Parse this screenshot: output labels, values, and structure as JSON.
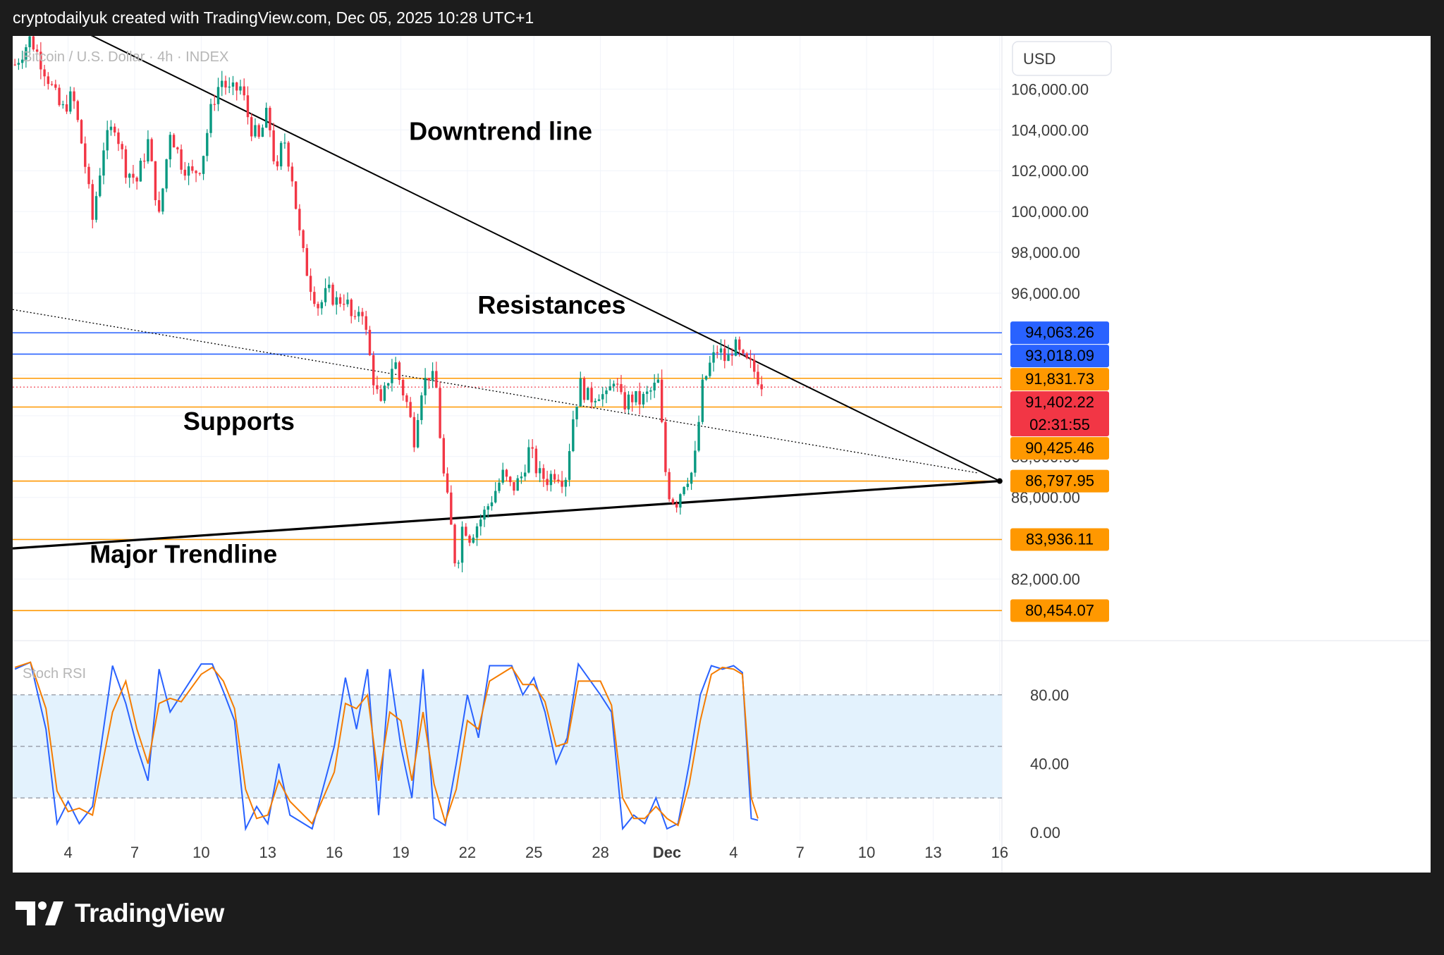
{
  "header": {
    "attribution": "cryptodailyuk created with TradingView.com, Dec 05, 2025 10:28 UTC+1"
  },
  "footer": {
    "brand": "TradingView",
    "logo_icon": "tradingview-logo-icon"
  },
  "chart_data": [
    {
      "type": "candlestick",
      "title": "Bitcoin / U.S. Dollar · 4h · INDEX",
      "currency_label": "USD",
      "x_axis": {
        "ticks": [
          "4",
          "7",
          "10",
          "13",
          "16",
          "19",
          "22",
          "25",
          "28",
          "Dec",
          "4",
          "7",
          "10",
          "13",
          "16"
        ],
        "tick_days": [
          4,
          7,
          10,
          13,
          16,
          19,
          22,
          25,
          28,
          31,
          34,
          37,
          40,
          43,
          46
        ],
        "range_days": [
          1.5,
          46.1
        ]
      },
      "y_axis": {
        "scale": "linear",
        "range": [
          79500,
          108600
        ],
        "ticks": [
          82000,
          84000,
          86000,
          88000,
          90000,
          92000,
          94000,
          96000,
          98000,
          100000,
          102000,
          104000,
          106000
        ],
        "tick_labels": [
          "82,000.00",
          "84,000.00",
          "86,000.00",
          "88,000.00",
          "90,000.00",
          "92,000.00",
          "94,000.00",
          "96,000.00",
          "98,000.00",
          "100,000.00",
          "102,000.00",
          "104,000.00",
          "106,000.00"
        ]
      },
      "close_path": [
        [
          1.6,
          107200
        ],
        [
          2.3,
          108500
        ],
        [
          3.0,
          106800
        ],
        [
          3.7,
          104900
        ],
        [
          4.2,
          105700
        ],
        [
          4.7,
          102800
        ],
        [
          5.1,
          99600
        ],
        [
          5.6,
          103200
        ],
        [
          6.1,
          104300
        ],
        [
          6.6,
          102100
        ],
        [
          7.1,
          101500
        ],
        [
          7.6,
          103400
        ],
        [
          8.1,
          99700
        ],
        [
          8.6,
          104000
        ],
        [
          9.1,
          102400
        ],
        [
          9.6,
          101800
        ],
        [
          10.0,
          102300
        ],
        [
          10.5,
          105300
        ],
        [
          10.9,
          106500
        ],
        [
          11.3,
          105800
        ],
        [
          11.8,
          106100
        ],
        [
          12.2,
          104200
        ],
        [
          12.6,
          103500
        ],
        [
          13.0,
          104900
        ],
        [
          13.4,
          101600
        ],
        [
          13.7,
          103800
        ],
        [
          14.1,
          101700
        ],
        [
          14.5,
          98300
        ],
        [
          14.9,
          96500
        ],
        [
          15.3,
          95300
        ],
        [
          15.7,
          96100
        ],
        [
          16.1,
          95600
        ],
        [
          16.5,
          95800
        ],
        [
          16.9,
          94300
        ],
        [
          17.2,
          95700
        ],
        [
          17.5,
          93500
        ],
        [
          17.8,
          91600
        ],
        [
          18.1,
          90400
        ],
        [
          18.4,
          91700
        ],
        [
          18.7,
          92800
        ],
        [
          19.0,
          91500
        ],
        [
          19.3,
          90500
        ],
        [
          19.6,
          88900
        ],
        [
          19.9,
          91300
        ],
        [
          20.3,
          92100
        ],
        [
          20.6,
          91300
        ],
        [
          20.9,
          87300
        ],
        [
          21.2,
          85100
        ],
        [
          21.5,
          82400
        ],
        [
          21.8,
          84800
        ],
        [
          22.1,
          84100
        ],
        [
          22.4,
          84600
        ],
        [
          22.8,
          85300
        ],
        [
          23.2,
          86200
        ],
        [
          23.6,
          87100
        ],
        [
          24.0,
          86400
        ],
        [
          24.4,
          86900
        ],
        [
          24.8,
          88400
        ],
        [
          25.2,
          87100
        ],
        [
          25.6,
          86900
        ],
        [
          26.0,
          87300
        ],
        [
          26.4,
          86800
        ],
        [
          26.8,
          90200
        ],
        [
          27.1,
          91500
        ],
        [
          27.5,
          90800
        ],
        [
          27.9,
          91200
        ],
        [
          28.3,
          90800
        ],
        [
          28.6,
          91900
        ],
        [
          29.0,
          90500
        ],
        [
          29.4,
          90900
        ],
        [
          29.8,
          90700
        ],
        [
          30.2,
          91100
        ],
        [
          30.6,
          91600
        ],
        [
          31.0,
          86400
        ],
        [
          31.4,
          85700
        ],
        [
          31.8,
          86900
        ],
        [
          32.2,
          87300
        ],
        [
          32.6,
          91400
        ],
        [
          32.9,
          92400
        ],
        [
          33.3,
          93300
        ],
        [
          33.7,
          92600
        ],
        [
          34.0,
          93500
        ],
        [
          34.4,
          92700
        ],
        [
          34.8,
          92400
        ],
        [
          35.1,
          91900
        ],
        [
          35.4,
          91400
        ]
      ],
      "last_price_tag": {
        "value": 91402.22,
        "countdown": "02:31:55"
      },
      "price_tags": [
        {
          "value": 94063.26,
          "label": "94,063.26",
          "bg": "#2962ff",
          "fg": "#ffffff"
        },
        {
          "value": 93018.09,
          "label": "93,018.09",
          "bg": "#2962ff",
          "fg": "#ffffff"
        },
        {
          "value": 91831.73,
          "label": "91,831.73",
          "bg": "#ff9800",
          "fg": "#000000"
        },
        {
          "value": 91402.22,
          "label": "91,402.22",
          "bg": "#f23645",
          "fg": "#ffffff"
        },
        {
          "value": 90425.46,
          "label": "90,425.46",
          "bg": "#ff9800",
          "fg": "#000000"
        },
        {
          "value": 86797.95,
          "label": "86,797.95",
          "bg": "#ff9800",
          "fg": "#000000"
        },
        {
          "value": 83936.11,
          "label": "83,936.11",
          "bg": "#ff9800",
          "fg": "#000000"
        },
        {
          "value": 80454.07,
          "label": "80,454.07",
          "bg": "#ff9800",
          "fg": "#000000"
        }
      ],
      "horizontal_lines": [
        {
          "value": 94063.26,
          "color": "#2962ff"
        },
        {
          "value": 93018.09,
          "color": "#2962ff"
        },
        {
          "value": 91831.73,
          "color": "#ff9800"
        },
        {
          "value": 90425.46,
          "color": "#ff9800"
        },
        {
          "value": 86797.95,
          "color": "#ff9800"
        },
        {
          "value": 83936.11,
          "color": "#ff9800"
        },
        {
          "value": 80454.07,
          "color": "#ff9800"
        }
      ],
      "trend_lines": [
        {
          "name": "Downtrend line",
          "from": [
            5.0,
            108650
          ],
          "to": [
            46.0,
            86800
          ],
          "color": "#000000",
          "style": "solid"
        },
        {
          "name": "Major Trendline",
          "from": [
            1.5,
            83500
          ],
          "to": [
            46.0,
            86800
          ],
          "color": "#000000",
          "style": "solid-thick"
        },
        {
          "name": "dotted trendline",
          "from": [
            1.5,
            95200
          ],
          "to": [
            45.0,
            87200
          ],
          "color": "#000000",
          "style": "dotted"
        }
      ],
      "annotations": [
        {
          "text": "Downtrend line",
          "at": [
            23.5,
            103500
          ]
        },
        {
          "text": "Resistances",
          "at": [
            25.8,
            95000
          ]
        },
        {
          "text": "Supports",
          "at": [
            11.7,
            89300
          ]
        },
        {
          "text": "Major Trendline",
          "at": [
            9.2,
            82800
          ]
        }
      ],
      "colors": {
        "up": "#089981",
        "down": "#f23645"
      }
    },
    {
      "type": "line",
      "title": "Stoch RSI",
      "y_axis": {
        "range": [
          -5,
          105
        ],
        "ticks": [
          0,
          40,
          80
        ],
        "tick_labels": [
          "0.00",
          "40.00",
          "80.00"
        ]
      },
      "bands": {
        "upper": 80,
        "middle": 50,
        "lower": 20,
        "fill": "#e3f2fd"
      },
      "series": [
        {
          "key": "k",
          "color": "#2962ff",
          "points": [
            [
              1.6,
              95
            ],
            [
              2.3,
              99
            ],
            [
              3.0,
              60
            ],
            [
              3.5,
              5
            ],
            [
              4.0,
              18
            ],
            [
              4.5,
              5
            ],
            [
              5.1,
              15
            ],
            [
              6.0,
              97
            ],
            [
              6.6,
              75
            ],
            [
              7.1,
              50
            ],
            [
              7.6,
              30
            ],
            [
              8.1,
              95
            ],
            [
              8.6,
              70
            ],
            [
              9.1,
              80
            ],
            [
              10.0,
              98
            ],
            [
              10.5,
              98
            ],
            [
              11.0,
              82
            ],
            [
              11.5,
              65
            ],
            [
              12.0,
              2
            ],
            [
              12.5,
              15
            ],
            [
              13.0,
              5
            ],
            [
              13.5,
              40
            ],
            [
              14.0,
              10
            ],
            [
              15.0,
              2
            ],
            [
              16.0,
              50
            ],
            [
              16.5,
              90
            ],
            [
              17.0,
              60
            ],
            [
              17.5,
              95
            ],
            [
              18.0,
              10
            ],
            [
              18.5,
              95
            ],
            [
              19.0,
              50
            ],
            [
              19.5,
              20
            ],
            [
              20.0,
              95
            ],
            [
              20.5,
              8
            ],
            [
              21.0,
              4
            ],
            [
              21.5,
              40
            ],
            [
              22.0,
              80
            ],
            [
              22.5,
              55
            ],
            [
              23.0,
              97
            ],
            [
              24.0,
              97
            ],
            [
              24.5,
              80
            ],
            [
              25.0,
              90
            ],
            [
              25.5,
              70
            ],
            [
              26.0,
              40
            ],
            [
              26.5,
              55
            ],
            [
              27.0,
              98
            ],
            [
              28.0,
              80
            ],
            [
              28.5,
              70
            ],
            [
              29.0,
              2
            ],
            [
              29.5,
              10
            ],
            [
              30.0,
              5
            ],
            [
              30.5,
              20
            ],
            [
              31.0,
              2
            ],
            [
              31.5,
              5
            ],
            [
              32.0,
              40
            ],
            [
              32.5,
              80
            ],
            [
              33.0,
              97
            ],
            [
              33.5,
              95
            ],
            [
              34.0,
              97
            ],
            [
              34.4,
              93
            ],
            [
              34.8,
              8
            ],
            [
              35.1,
              7
            ]
          ]
        },
        {
          "key": "d",
          "color": "#f57c00",
          "points": [
            [
              1.6,
              96
            ],
            [
              2.3,
              99
            ],
            [
              3.0,
              72
            ],
            [
              3.5,
              24
            ],
            [
              4.0,
              12
            ],
            [
              4.5,
              14
            ],
            [
              5.1,
              10
            ],
            [
              6.0,
              70
            ],
            [
              6.6,
              88
            ],
            [
              7.1,
              60
            ],
            [
              7.6,
              40
            ],
            [
              8.1,
              75
            ],
            [
              8.6,
              78
            ],
            [
              9.1,
              76
            ],
            [
              10.0,
              92
            ],
            [
              10.5,
              96
            ],
            [
              11.0,
              88
            ],
            [
              11.5,
              72
            ],
            [
              12.0,
              25
            ],
            [
              12.5,
              8
            ],
            [
              13.0,
              10
            ],
            [
              13.5,
              30
            ],
            [
              14.0,
              18
            ],
            [
              15.0,
              5
            ],
            [
              16.0,
              35
            ],
            [
              16.5,
              75
            ],
            [
              17.0,
              72
            ],
            [
              17.5,
              80
            ],
            [
              18.0,
              30
            ],
            [
              18.5,
              70
            ],
            [
              19.0,
              65
            ],
            [
              19.5,
              30
            ],
            [
              20.0,
              70
            ],
            [
              20.5,
              28
            ],
            [
              21.0,
              6
            ],
            [
              21.5,
              25
            ],
            [
              22.0,
              65
            ],
            [
              22.5,
              60
            ],
            [
              23.0,
              88
            ],
            [
              24.0,
              96
            ],
            [
              24.5,
              86
            ],
            [
              25.0,
              86
            ],
            [
              25.5,
              76
            ],
            [
              26.0,
              50
            ],
            [
              26.5,
              52
            ],
            [
              27.0,
              88
            ],
            [
              28.0,
              88
            ],
            [
              28.5,
              74
            ],
            [
              29.0,
              20
            ],
            [
              29.5,
              8
            ],
            [
              30.0,
              8
            ],
            [
              30.5,
              15
            ],
            [
              31.0,
              8
            ],
            [
              31.5,
              4
            ],
            [
              32.0,
              28
            ],
            [
              32.5,
              65
            ],
            [
              33.0,
              92
            ],
            [
              33.5,
              96
            ],
            [
              34.0,
              95
            ],
            [
              34.4,
              92
            ],
            [
              34.8,
              20
            ],
            [
              35.1,
              8
            ]
          ]
        }
      ],
      "legend": "Stoch RSI"
    }
  ]
}
